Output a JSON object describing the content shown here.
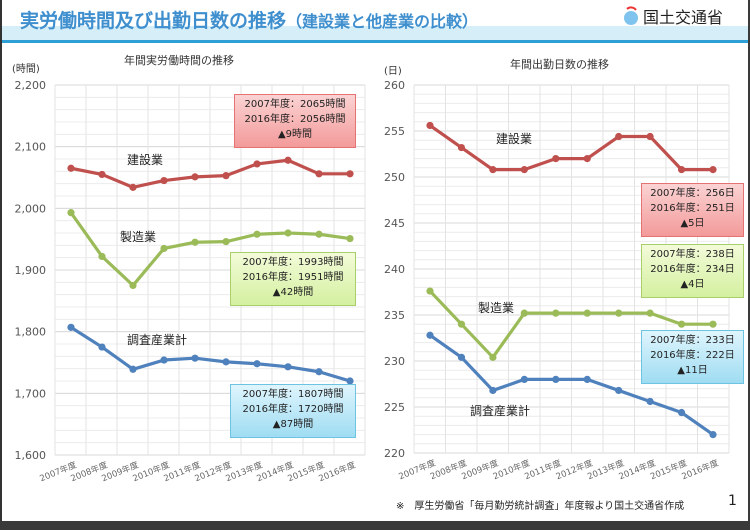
{
  "header": {
    "title": "実労働時間及び出勤日数の推移",
    "subtitle": "（建設業と他産業の比較）",
    "logo_text": "国土交通省",
    "logo_icon": "mlit-logo-icon"
  },
  "chart_data": [
    {
      "type": "line",
      "title": "年間実労働時間の推移",
      "ylabel": "(時間)",
      "ylim": [
        1600,
        2200
      ],
      "yticks": [
        "1,600",
        "1,700",
        "1,800",
        "1,900",
        "2,000",
        "2,100",
        "2,200"
      ],
      "ytick_values": [
        1600,
        1700,
        1800,
        1900,
        2000,
        2100,
        2200
      ],
      "grid": true,
      "categories": [
        "2007年度",
        "2008年度",
        "2009年度",
        "2010年度",
        "2011年度",
        "2012年度",
        "2013年度",
        "2014年度",
        "2015年度",
        "2016年度"
      ],
      "series": [
        {
          "name": "建設業",
          "color": "#c0504d",
          "values": [
            2065,
            2055,
            2034,
            2045,
            2051,
            2053,
            2072,
            2078,
            2056,
            2056
          ]
        },
        {
          "name": "製造業",
          "color": "#9bbb59",
          "values": [
            1993,
            1922,
            1875,
            1935,
            1945,
            1946,
            1958,
            1960,
            1958,
            1951
          ]
        },
        {
          "name": "調査産業計",
          "color": "#4f81bd",
          "values": [
            1807,
            1775,
            1739,
            1754,
            1757,
            1751,
            1748,
            1743,
            1735,
            1720
          ]
        }
      ],
      "annotations": [
        {
          "color": "red",
          "lines": [
            "2007年度：2065時間",
            "2016年度：2056時間",
            "▲9時間"
          ]
        },
        {
          "color": "green",
          "lines": [
            "2007年度：1993時間",
            "2016年度：1951時間",
            "▲42時間"
          ]
        },
        {
          "color": "blue",
          "lines": [
            "2007年度：1807時間",
            "2016年度：1720時間",
            "▲87時間"
          ]
        }
      ]
    },
    {
      "type": "line",
      "title": "年間出勤日数の推移",
      "ylabel": "(日)",
      "ylim": [
        220,
        260
      ],
      "yticks": [
        "220",
        "225",
        "230",
        "235",
        "240",
        "245",
        "250",
        "255",
        "260"
      ],
      "ytick_values": [
        220,
        225,
        230,
        235,
        240,
        245,
        250,
        255,
        260
      ],
      "grid": true,
      "categories": [
        "2007年度",
        "2008年度",
        "2009年度",
        "2010年度",
        "2011年度",
        "2012年度",
        "2013年度",
        "2014年度",
        "2015年度",
        "2016年度"
      ],
      "series": [
        {
          "name": "建設業",
          "color": "#c0504d",
          "values": [
            255.6,
            253.2,
            250.8,
            250.8,
            252,
            252,
            254.4,
            254.4,
            250.8,
            250.8
          ]
        },
        {
          "name": "製造業",
          "color": "#9bbb59",
          "values": [
            237.6,
            234,
            230.4,
            235.2,
            235.2,
            235.2,
            235.2,
            235.2,
            234,
            234
          ]
        },
        {
          "name": "調査産業計",
          "color": "#4f81bd",
          "values": [
            232.8,
            230.4,
            226.8,
            228,
            228,
            228,
            226.8,
            225.6,
            224.4,
            222
          ]
        }
      ],
      "annotations": [
        {
          "color": "red",
          "lines": [
            "2007年度：256日",
            "2016年度：251日",
            "▲5日"
          ]
        },
        {
          "color": "green",
          "lines": [
            "2007年度：238日",
            "2016年度：234日",
            "▲4日"
          ]
        },
        {
          "color": "blue",
          "lines": [
            "2007年度：233日",
            "2016年度：222日",
            "▲11日"
          ]
        }
      ]
    }
  ],
  "footer": {
    "note": "※　厚生労働省「毎月勤労統計調査」年度報より国土交通省作成",
    "page": "1"
  }
}
